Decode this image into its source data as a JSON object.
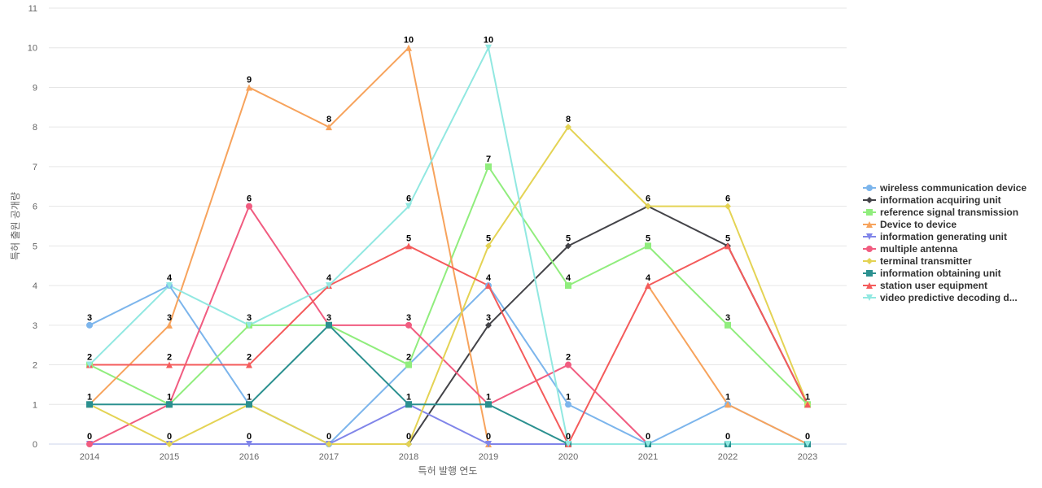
{
  "chart_data": {
    "type": "line",
    "xlabel": "특허 발행 연도",
    "ylabel": "특허 출원 공개량",
    "ylim": [
      0,
      11
    ],
    "yticks": [
      0,
      1,
      2,
      3,
      4,
      5,
      6,
      7,
      8,
      9,
      10,
      11
    ],
    "grid": true,
    "legend_position": "right",
    "categories": [
      "2014",
      "2015",
      "2016",
      "2017",
      "2018",
      "2019",
      "2020",
      "2021",
      "2022",
      "2023"
    ],
    "series": [
      {
        "name": "wireless communication device",
        "color": "#7cb5ec",
        "marker": "circle",
        "values": [
          3,
          4,
          1,
          0,
          2,
          4,
          1,
          0,
          1,
          0
        ]
      },
      {
        "name": "information acquiring unit",
        "color": "#434348",
        "marker": "diamond",
        "values": [
          null,
          null,
          null,
          null,
          0,
          3,
          5,
          6,
          5,
          1
        ]
      },
      {
        "name": "reference signal transmission",
        "color": "#90ed7d",
        "marker": "square",
        "values": [
          2,
          1,
          3,
          3,
          2,
          7,
          4,
          5,
          3,
          1
        ]
      },
      {
        "name": "Device to device",
        "color": "#f7a35c",
        "marker": "triangle",
        "values": [
          1,
          3,
          9,
          8,
          10,
          0,
          null,
          4,
          1,
          0
        ]
      },
      {
        "name": "information generating unit",
        "color": "#8085e9",
        "marker": "triangle-down",
        "values": [
          0,
          0,
          0,
          0,
          1,
          0,
          0,
          null,
          null,
          null
        ]
      },
      {
        "name": "multiple antenna",
        "color": "#f15c80",
        "marker": "circle",
        "values": [
          0,
          1,
          6,
          3,
          3,
          1,
          2,
          0,
          null,
          null
        ]
      },
      {
        "name": "terminal transmitter",
        "color": "#e4d354",
        "marker": "diamond",
        "values": [
          1,
          0,
          1,
          0,
          0,
          5,
          8,
          6,
          6,
          1
        ]
      },
      {
        "name": "information obtaining unit",
        "color": "#2b908f",
        "marker": "square",
        "values": [
          1,
          1,
          1,
          3,
          1,
          1,
          0,
          0,
          0,
          0
        ]
      },
      {
        "name": "station user equipment",
        "color": "#f45b5b",
        "marker": "triangle",
        "values": [
          2,
          2,
          2,
          4,
          5,
          4,
          0,
          4,
          5,
          1
        ]
      },
      {
        "name": "video predictive decoding d...",
        "color": "#91e8e1",
        "marker": "triangle-down",
        "values": [
          2,
          4,
          3,
          4,
          6,
          10,
          0,
          0,
          0,
          0
        ]
      }
    ],
    "data_labels": [
      {
        "x": "2014",
        "text": "3",
        "y": 3
      },
      {
        "x": "2014",
        "text": "2",
        "y": 2
      },
      {
        "x": "2014",
        "text": "1",
        "y": 1
      },
      {
        "x": "2014",
        "text": "0",
        "y": 0
      },
      {
        "x": "2015",
        "text": "4",
        "y": 4
      },
      {
        "x": "2015",
        "text": "3",
        "y": 3
      },
      {
        "x": "2015",
        "text": "2",
        "y": 2
      },
      {
        "x": "2015",
        "text": "1",
        "y": 1
      },
      {
        "x": "2015",
        "text": "0",
        "y": 0
      },
      {
        "x": "2016",
        "text": "9",
        "y": 9
      },
      {
        "x": "2016",
        "text": "6",
        "y": 6
      },
      {
        "x": "2016",
        "text": "3",
        "y": 3
      },
      {
        "x": "2016",
        "text": "2",
        "y": 2
      },
      {
        "x": "2016",
        "text": "1",
        "y": 1
      },
      {
        "x": "2016",
        "text": "0",
        "y": 0
      },
      {
        "x": "2017",
        "text": "8",
        "y": 8
      },
      {
        "x": "2017",
        "text": "4",
        "y": 4
      },
      {
        "x": "2017",
        "text": "3",
        "y": 3
      },
      {
        "x": "2017",
        "text": "0",
        "y": 0
      },
      {
        "x": "2018",
        "text": "10",
        "y": 10
      },
      {
        "x": "2018",
        "text": "6",
        "y": 6
      },
      {
        "x": "2018",
        "text": "5",
        "y": 5
      },
      {
        "x": "2018",
        "text": "3",
        "y": 3
      },
      {
        "x": "2018",
        "text": "2",
        "y": 2
      },
      {
        "x": "2018",
        "text": "1",
        "y": 1
      },
      {
        "x": "2018",
        "text": "0",
        "y": 0
      },
      {
        "x": "2019",
        "text": "10",
        "y": 10
      },
      {
        "x": "2019",
        "text": "7",
        "y": 7
      },
      {
        "x": "2019",
        "text": "5",
        "y": 5
      },
      {
        "x": "2019",
        "text": "4",
        "y": 4
      },
      {
        "x": "2019",
        "text": "3",
        "y": 3
      },
      {
        "x": "2019",
        "text": "1",
        "y": 1
      },
      {
        "x": "2019",
        "text": "0",
        "y": 0
      },
      {
        "x": "2020",
        "text": "8",
        "y": 8
      },
      {
        "x": "2020",
        "text": "5",
        "y": 5
      },
      {
        "x": "2020",
        "text": "4",
        "y": 4
      },
      {
        "x": "2020",
        "text": "2",
        "y": 2
      },
      {
        "x": "2020",
        "text": "1",
        "y": 1
      },
      {
        "x": "2020",
        "text": "0",
        "y": 0
      },
      {
        "x": "2021",
        "text": "6",
        "y": 6
      },
      {
        "x": "2021",
        "text": "5",
        "y": 5
      },
      {
        "x": "2021",
        "text": "4",
        "y": 4
      },
      {
        "x": "2021",
        "text": "0",
        "y": 0
      },
      {
        "x": "2022",
        "text": "6",
        "y": 6
      },
      {
        "x": "2022",
        "text": "5",
        "y": 5
      },
      {
        "x": "2022",
        "text": "3",
        "y": 3
      },
      {
        "x": "2022",
        "text": "1",
        "y": 1
      },
      {
        "x": "2022",
        "text": "0",
        "y": 0
      },
      {
        "x": "2023",
        "text": "1",
        "y": 1
      },
      {
        "x": "2023",
        "text": "0",
        "y": 0
      }
    ]
  }
}
